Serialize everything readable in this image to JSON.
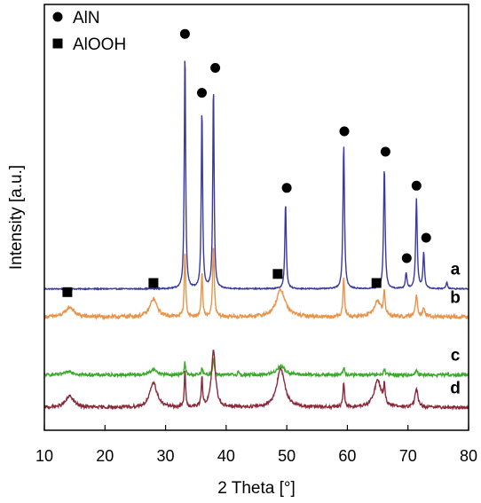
{
  "chart_data": {
    "type": "line",
    "title": "",
    "xlabel": "2 Theta [°]",
    "ylabel": "Intensity [a.u.]",
    "xlim": [
      10,
      80
    ],
    "xticks": [
      "10",
      "20",
      "30",
      "40",
      "50",
      "60",
      "70",
      "80"
    ],
    "yticks": [],
    "grid": false,
    "legend": {
      "placement": "top-left",
      "entries": [
        {
          "label": "AlN",
          "marker": "circle"
        },
        {
          "label": "AlOOH",
          "marker": "square"
        }
      ]
    },
    "series": [
      {
        "name": "a",
        "color": "#3a3a9e",
        "baseline": 0.62,
        "noise": 0.012,
        "peaks": [
          {
            "x": 33.2,
            "h": 5.3,
            "w": 0.13
          },
          {
            "x": 36.0,
            "h": 4.0,
            "w": 0.13
          },
          {
            "x": 37.9,
            "h": 4.5,
            "w": 0.13
          },
          {
            "x": 49.8,
            "h": 1.9,
            "w": 0.14
          },
          {
            "x": 59.4,
            "h": 3.2,
            "w": 0.15
          },
          {
            "x": 66.1,
            "h": 2.7,
            "w": 0.15
          },
          {
            "x": 69.7,
            "h": 0.35,
            "w": 0.15
          },
          {
            "x": 71.4,
            "h": 2.0,
            "w": 0.15
          },
          {
            "x": 72.6,
            "h": 0.8,
            "w": 0.15
          },
          {
            "x": 76.4,
            "h": 0.15,
            "w": 0.15
          }
        ]
      },
      {
        "name": "b",
        "color": "#e8944a",
        "baseline": 0.0,
        "noise": 0.04,
        "peaks": [
          {
            "x": 14.2,
            "h": 0.22,
            "w": 0.8
          },
          {
            "x": 28.0,
            "h": 0.4,
            "w": 0.7
          },
          {
            "x": 33.2,
            "h": 1.5,
            "w": 0.13
          },
          {
            "x": 36.0,
            "h": 1.0,
            "w": 0.13
          },
          {
            "x": 37.9,
            "h": 1.6,
            "w": 0.15
          },
          {
            "x": 49.0,
            "h": 0.6,
            "w": 0.9
          },
          {
            "x": 59.4,
            "h": 0.9,
            "w": 0.15
          },
          {
            "x": 65.0,
            "h": 0.35,
            "w": 0.7
          },
          {
            "x": 66.1,
            "h": 0.5,
            "w": 0.15
          },
          {
            "x": 71.4,
            "h": 0.5,
            "w": 0.2
          },
          {
            "x": 72.6,
            "h": 0.2,
            "w": 0.2
          }
        ]
      },
      {
        "name": "c",
        "color": "#3aaa2a",
        "baseline": -1.28,
        "noise": 0.035,
        "peaks": [
          {
            "x": 14.2,
            "h": 0.08,
            "w": 0.8
          },
          {
            "x": 28.0,
            "h": 0.12,
            "w": 0.7
          },
          {
            "x": 33.2,
            "h": 0.28,
            "w": 0.13
          },
          {
            "x": 36.0,
            "h": 0.15,
            "w": 0.13
          },
          {
            "x": 37.9,
            "h": 0.4,
            "w": 0.15
          },
          {
            "x": 42.0,
            "h": 0.12,
            "w": 0.08
          },
          {
            "x": 49.0,
            "h": 0.2,
            "w": 0.8
          },
          {
            "x": 59.4,
            "h": 0.18,
            "w": 0.15
          },
          {
            "x": 66.1,
            "h": 0.14,
            "w": 0.15
          },
          {
            "x": 71.4,
            "h": 0.12,
            "w": 0.2
          }
        ]
      },
      {
        "name": "d",
        "color": "#8a2a3a",
        "baseline": -2.0,
        "noise": 0.035,
        "peaks": [
          {
            "x": 14.2,
            "h": 0.25,
            "w": 0.8
          },
          {
            "x": 28.0,
            "h": 0.55,
            "w": 0.7
          },
          {
            "x": 33.2,
            "h": 0.8,
            "w": 0.13
          },
          {
            "x": 36.0,
            "h": 0.65,
            "w": 0.13
          },
          {
            "x": 37.9,
            "h": 1.25,
            "w": 0.4
          },
          {
            "x": 49.0,
            "h": 0.85,
            "w": 0.8
          },
          {
            "x": 59.4,
            "h": 0.55,
            "w": 0.15
          },
          {
            "x": 65.0,
            "h": 0.6,
            "w": 0.7
          },
          {
            "x": 66.1,
            "h": 0.4,
            "w": 0.15
          },
          {
            "x": 71.4,
            "h": 0.4,
            "w": 0.3
          }
        ]
      }
    ],
    "markers": [
      {
        "symbol": "circle",
        "x": 33.2,
        "y": 6.25
      },
      {
        "symbol": "circle",
        "x": 36.0,
        "y": 4.95
      },
      {
        "symbol": "circle",
        "x": 38.2,
        "y": 5.5
      },
      {
        "symbol": "circle",
        "x": 50.0,
        "y": 2.85
      },
      {
        "symbol": "circle",
        "x": 59.5,
        "y": 4.1
      },
      {
        "symbol": "circle",
        "x": 66.3,
        "y": 3.65
      },
      {
        "symbol": "circle",
        "x": 69.8,
        "y": 1.3
      },
      {
        "symbol": "circle",
        "x": 71.4,
        "y": 2.9
      },
      {
        "symbol": "circle",
        "x": 73.0,
        "y": 1.75
      },
      {
        "symbol": "square",
        "x": 13.8,
        "y": 0.55
      },
      {
        "symbol": "square",
        "x": 28.0,
        "y": 0.75
      },
      {
        "symbol": "square",
        "x": 48.5,
        "y": 0.95
      },
      {
        "symbol": "square",
        "x": 64.8,
        "y": 0.75
      }
    ],
    "yrange_internal": [
      -2.5,
      6.9
    ]
  }
}
